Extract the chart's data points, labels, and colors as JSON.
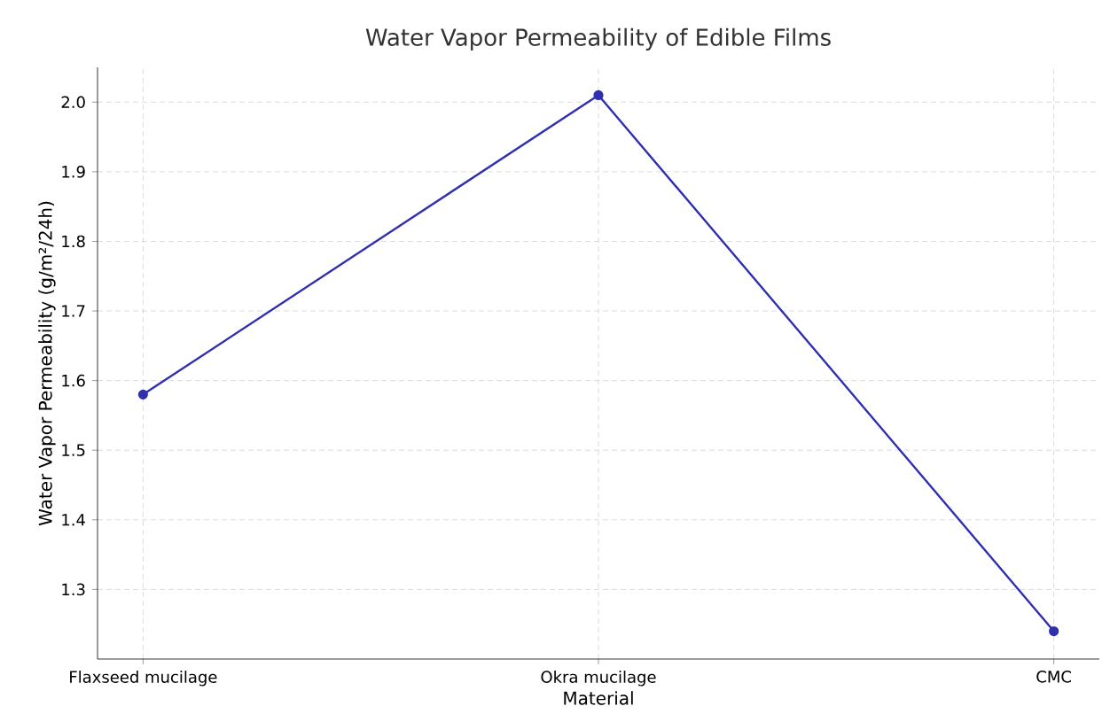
{
  "chart_data": {
    "type": "line",
    "title": "Water Vapor Permeability of Edible Films",
    "xlabel": "Material",
    "ylabel": "Water Vapor Permeability (g/m²/24h)",
    "categories": [
      "Flaxseed mucilage",
      "Okra mucilage",
      "CMC"
    ],
    "series": [
      {
        "color": "#2f2fb0",
        "values": [
          1.58,
          2.01,
          1.24
        ]
      }
    ],
    "ylim": [
      1.2,
      2.05
    ],
    "yticks": [
      1.3,
      1.4,
      1.5,
      1.6,
      1.7,
      1.8,
      1.9,
      {
        "value": 2.0,
        "label": "2.0"
      }
    ],
    "grid": true,
    "marker": "circle",
    "line_style": "solid"
  }
}
